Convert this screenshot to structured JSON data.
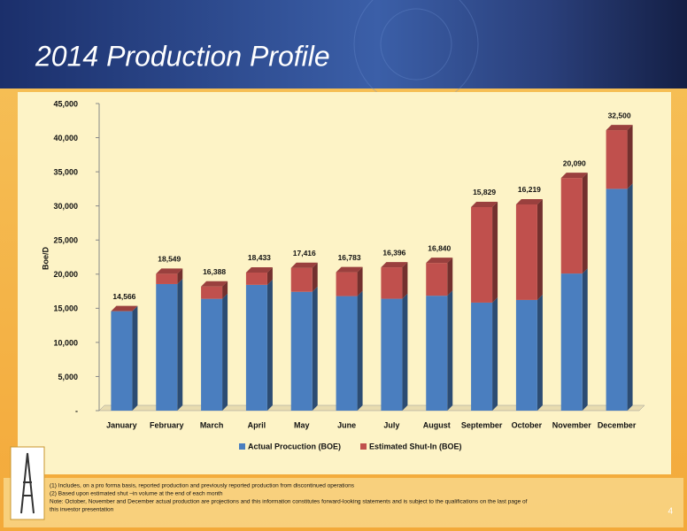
{
  "chart_data": {
    "type": "stacked_bar",
    "title": "2014 Production Profile",
    "ylabel": "Boe/D",
    "categories": [
      "January",
      "February",
      "March",
      "April",
      "May",
      "June",
      "July",
      "August",
      "September",
      "October",
      "November",
      "December"
    ],
    "series": [
      {
        "name": "Actual Procuction (BOE)",
        "color": "#4a7ebf",
        "values": [
          14566,
          18549,
          16388,
          18433,
          17416,
          16783,
          16396,
          16840,
          15829,
          16219,
          20090,
          32500
        ],
        "value_labels": [
          "14,566",
          "18,549",
          "16,388",
          "18,433",
          "17,416",
          "16,783",
          "16,396",
          "16,840",
          "15,829",
          "16,219",
          "20,090",
          "32,500"
        ]
      },
      {
        "name": "Estimated Shut-In (BOE)",
        "color": "#c0504d",
        "values": [
          0,
          1500,
          1800,
          1800,
          3500,
          3500,
          4600,
          4800,
          14000,
          14000,
          14000,
          8600
        ]
      }
    ],
    "ylim": [
      0,
      45000
    ],
    "yticks": [
      {
        "value": 0,
        "label": "-"
      },
      {
        "value": 5000,
        "label": "5,000"
      },
      {
        "value": 10000,
        "label": "10,000"
      },
      {
        "value": 15000,
        "label": "15,000"
      },
      {
        "value": 20000,
        "label": "20,000"
      },
      {
        "value": 25000,
        "label": "25,000"
      },
      {
        "value": 30000,
        "label": "30,000"
      },
      {
        "value": 35000,
        "label": "35,000"
      },
      {
        "value": 40000,
        "label": "40,000"
      },
      {
        "value": 45000,
        "label": "45,000"
      }
    ],
    "legend": "bottom"
  },
  "footnotes": [
    "(1) Includes, on a pro forma basis, reported production and previously reported production from discontinued operations",
    "(2) Based upon estimated shut –in volume at the end of each month",
    "Note: October, November and December actual production are projections and this information constitutes forward-looking statements and is subject to the qualifications on the last page of",
    "this investor presentation"
  ],
  "page_number": "4"
}
